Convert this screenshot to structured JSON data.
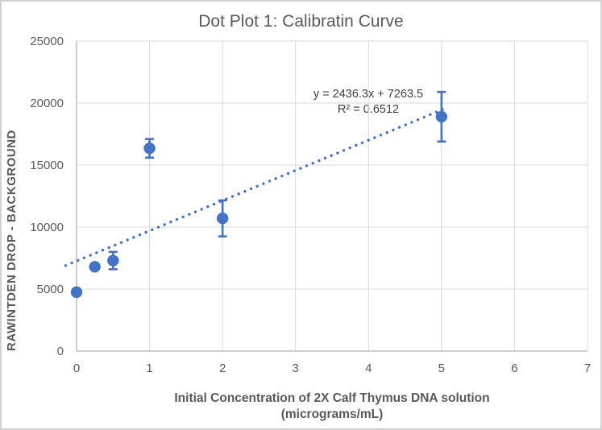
{
  "chart_data": {
    "type": "scatter",
    "title": "Dot Plot 1: Calibratin Curve",
    "xlabel_line1": "Initial Concentration of 2X Calf Thymus DNA solution",
    "xlabel_line2": "(micrograms/mL)",
    "ylabel": "RAWINTDEN DROP - BACKGROUND",
    "xlim": [
      0,
      7
    ],
    "ylim": [
      0,
      25000
    ],
    "xticks": [
      0,
      1,
      2,
      3,
      4,
      5,
      6,
      7
    ],
    "yticks": [
      0,
      5000,
      10000,
      15000,
      20000,
      25000
    ],
    "grid": true,
    "legend": "none",
    "points": [
      {
        "x": 0,
        "y": 4750,
        "yerr": 0
      },
      {
        "x": 0.25,
        "y": 6800,
        "yerr": 0
      },
      {
        "x": 0.5,
        "y": 7300,
        "yerr": 700
      },
      {
        "x": 1,
        "y": 16350,
        "yerr": 750
      },
      {
        "x": 2,
        "y": 10700,
        "yerr": 1450
      },
      {
        "x": 5,
        "y": 18900,
        "yerr": 2000
      }
    ],
    "trendline": {
      "slope": 2436.3,
      "intercept": 7263.5,
      "x_start": -0.15,
      "x_end": 5.07,
      "style": "dotted",
      "equation_label": "y = 2436.3x + 7263.5",
      "r2_label": "R² = 0.6512"
    },
    "colors": {
      "marker": "#4472C4",
      "trendline": "#4472C4",
      "errorbar": "#4472C4",
      "gridline": "#D9D9D9",
      "axis_line": "#BFBFBF",
      "tick_text": "#595959",
      "title_text": "#595959",
      "axis_title_text": "#595959",
      "equation_text": "#404040"
    }
  }
}
